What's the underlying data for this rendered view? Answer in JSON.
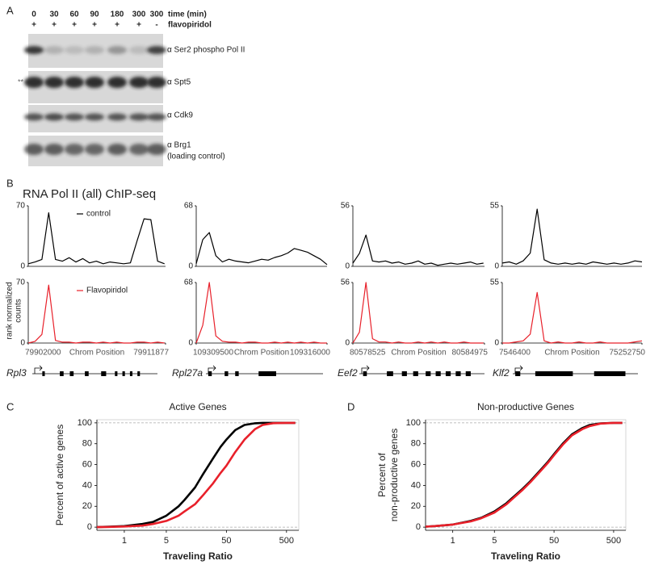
{
  "panel_labels": [
    "A",
    "B",
    "C",
    "D"
  ],
  "blot": {
    "time_label": "time (min)",
    "treatment_label": "flavopiridol",
    "times": [
      "0",
      "30",
      "60",
      "90",
      "180",
      "300",
      "300"
    ],
    "treatment": [
      "+",
      "+",
      "+",
      "+",
      "+",
      "+",
      "-"
    ],
    "antibodies": [
      "α Ser2 phospho Pol II",
      "α Spt5",
      "α Cdk9",
      "α Brg1"
    ],
    "loading_note": "(loading control)",
    "band_marker": "**"
  },
  "chip_title": "RNA Pol II (all) ChIP-seq",
  "chip_ylabel": [
    "rank normalized",
    "counts"
  ],
  "chart_data": [
    {
      "type": "track",
      "gene": "Rpl3",
      "xlabel": "Chrom Position",
      "xlim": [
        79902000,
        79911877
      ],
      "xticks": [
        79902000,
        79911877
      ],
      "ylim": [
        0,
        70
      ],
      "yticks": [
        0,
        70
      ],
      "x": [
        79902000,
        79902490,
        79902980,
        79903470,
        79903960,
        79904450,
        79904940,
        79905430,
        79905920,
        79906410,
        79906900,
        79907390,
        79907880,
        79908370,
        79908860,
        79909350,
        79909840,
        79910330,
        79910820,
        79911310,
        79911800
      ],
      "series": [
        {
          "name": "control",
          "color": "#000000",
          "values": [
            3,
            5,
            8,
            62,
            8,
            6,
            10,
            5,
            9,
            4,
            6,
            3,
            5,
            4,
            3,
            4,
            30,
            55,
            54,
            6,
            3
          ]
        },
        {
          "name": "Flavopiridol",
          "color": "#e8202a",
          "values": [
            0,
            2,
            10,
            67,
            3,
            1,
            1,
            0,
            1,
            1,
            0,
            1,
            0,
            1,
            0,
            0,
            1,
            1,
            0,
            1,
            0
          ]
        }
      ]
    },
    {
      "type": "track",
      "gene": "Rpl27a",
      "xlabel": "Chrom Position",
      "xlim": [
        109309500,
        109316000
      ],
      "xticks": [
        109309500,
        109316000
      ],
      "ylim": [
        0,
        68
      ],
      "yticks": [
        0,
        68
      ],
      "x": [
        109309500,
        109309825,
        109310150,
        109310475,
        109310800,
        109311125,
        109311450,
        109311775,
        109312100,
        109312425,
        109312750,
        109313075,
        109313400,
        109313725,
        109314050,
        109314375,
        109314700,
        109315025,
        109315350,
        109315675,
        109316000
      ],
      "series": [
        {
          "color": "#000000",
          "values": [
            3,
            30,
            38,
            12,
            5,
            8,
            6,
            5,
            4,
            6,
            8,
            7,
            10,
            12,
            15,
            20,
            18,
            16,
            12,
            8,
            2
          ]
        },
        {
          "color": "#e8202a",
          "values": [
            0,
            20,
            68,
            8,
            2,
            1,
            1,
            0,
            1,
            1,
            0,
            0,
            1,
            0,
            1,
            0,
            1,
            0,
            1,
            0,
            0
          ]
        }
      ]
    },
    {
      "type": "track",
      "gene": "Eef2",
      "xlabel": "Chrom Position",
      "xlim": [
        80578525,
        80584975
      ],
      "xticks": [
        80578525,
        80584975
      ],
      "ylim": [
        0,
        56
      ],
      "yticks": [
        0,
        56
      ],
      "x": [
        80578525,
        80578845,
        80579165,
        80579485,
        80579805,
        80580125,
        80580445,
        80580765,
        80581085,
        80581405,
        80581725,
        80582045,
        80582365,
        80582685,
        80583005,
        80583325,
        80583645,
        80583965,
        80584285,
        80584605,
        80584925
      ],
      "series": [
        {
          "color": "#000000",
          "values": [
            3,
            12,
            29,
            5,
            4,
            5,
            3,
            4,
            2,
            3,
            5,
            2,
            3,
            1,
            2,
            3,
            2,
            3,
            4,
            2,
            3
          ]
        },
        {
          "color": "#e8202a",
          "values": [
            0,
            10,
            56,
            4,
            1,
            1,
            0,
            1,
            0,
            0,
            1,
            0,
            1,
            0,
            1,
            0,
            0,
            1,
            0,
            0,
            0
          ]
        }
      ]
    },
    {
      "type": "track",
      "gene": "Klf2",
      "xlabel": "Chrom Position",
      "xlim": [
        7546400,
        75252750
      ],
      "xticks": [
        7546400,
        75252750
      ],
      "ylim": [
        0,
        55
      ],
      "yticks": [
        0,
        55
      ],
      "x": [
        7546400,
        10931400,
        14316400,
        17701400,
        21086400,
        24471400,
        27856400,
        31241400,
        34626400,
        38011400,
        41396400,
        44781400,
        48166400,
        51551400,
        54936400,
        58321400,
        61706400,
        65091400,
        68476400,
        71861400,
        75246400
      ],
      "series": [
        {
          "color": "#000000",
          "values": [
            3,
            4,
            2,
            5,
            12,
            52,
            6,
            3,
            2,
            3,
            2,
            3,
            2,
            4,
            3,
            2,
            3,
            2,
            3,
            5,
            4
          ]
        },
        {
          "color": "#e8202a",
          "values": [
            0,
            0,
            1,
            2,
            8,
            46,
            2,
            0,
            1,
            0,
            0,
            1,
            0,
            0,
            1,
            0,
            0,
            0,
            0,
            1,
            2
          ]
        }
      ]
    },
    {
      "type": "cdf",
      "title": "Active Genes",
      "xlabel": "Traveling Ratio",
      "ylabel": [
        "Percent of active genes"
      ],
      "log_x": true,
      "xlim": [
        0.35,
        800
      ],
      "xticks": [
        1,
        5,
        50,
        500
      ],
      "ylim": [
        -3,
        103
      ],
      "yticks": [
        0,
        20,
        40,
        60,
        80,
        100
      ],
      "reference_lines": [
        0,
        100
      ],
      "x": [
        0.35,
        0.5,
        1,
        2,
        3,
        5,
        8,
        10,
        15,
        20,
        30,
        40,
        50,
        70,
        100,
        150,
        200,
        300,
        500,
        700
      ],
      "series": [
        {
          "color": "#000000",
          "values": [
            0,
            0.3,
            1,
            3,
            5,
            11,
            20,
            26,
            38,
            50,
            66,
            77,
            84,
            93,
            98,
            99.6,
            100,
            100,
            100,
            100
          ]
        },
        {
          "color": "#e8202a",
          "values": [
            0,
            0.2,
            0.6,
            1.5,
            3,
            6,
            11,
            15,
            22,
            30,
            42,
            52,
            59,
            72,
            84,
            94,
            98,
            99.7,
            100,
            100
          ]
        }
      ]
    },
    {
      "type": "cdf",
      "title": "Non-productive Genes",
      "xlabel": "Traveling Ratio",
      "ylabel": [
        "Percent of",
        "non-productive genes"
      ],
      "log_x": true,
      "xlim": [
        0.35,
        800
      ],
      "xticks": [
        1,
        5,
        50,
        500
      ],
      "ylim": [
        -3,
        103
      ],
      "yticks": [
        0,
        20,
        40,
        60,
        80,
        100
      ],
      "reference_lines": [
        0,
        100
      ],
      "x": [
        0.35,
        0.5,
        1,
        2,
        3,
        5,
        8,
        10,
        15,
        20,
        30,
        40,
        50,
        70,
        100,
        150,
        200,
        300,
        500,
        700
      ],
      "series": [
        {
          "color": "#000000",
          "values": [
            0.5,
            1,
            2.5,
            6,
            9,
            15,
            23,
            28,
            37,
            44,
            55,
            63,
            70,
            80,
            89,
            95,
            98,
            99.5,
            100,
            100
          ]
        },
        {
          "color": "#e8202a",
          "values": [
            0.5,
            1,
            2.5,
            5.5,
            8.5,
            14,
            22,
            27,
            36,
            43,
            54,
            62,
            69,
            79,
            88,
            94,
            97,
            99.3,
            100,
            100
          ]
        }
      ]
    }
  ]
}
